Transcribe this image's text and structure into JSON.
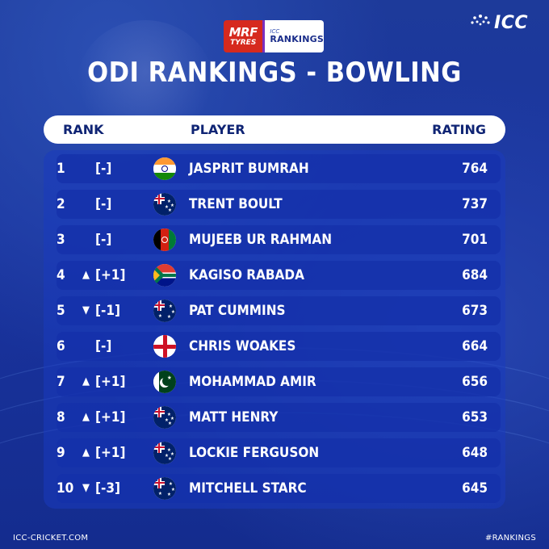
{
  "brand": {
    "mrf_line1": "MRF",
    "mrf_line2": "TYRES",
    "rankings_line1": "ICC",
    "rankings_line2": "RANKINGS",
    "icc_logo": "ICC"
  },
  "title": "ODI RANKINGS - BOWLING",
  "header": {
    "rank": "RANK",
    "player": "PLAYER",
    "rating": "RATING"
  },
  "rows": [
    {
      "rank": "1",
      "arrow": "",
      "change": "[-]",
      "player": "JASPRIT BUMRAH",
      "rating": "764",
      "flag": "india-flag-icon"
    },
    {
      "rank": "2",
      "arrow": "",
      "change": "[-]",
      "player": "TRENT BOULT",
      "rating": "737",
      "flag": "new-zealand-flag-icon"
    },
    {
      "rank": "3",
      "arrow": "",
      "change": "[-]",
      "player": "MUJEEB UR RAHMAN",
      "rating": "701",
      "flag": "afghanistan-flag-icon"
    },
    {
      "rank": "4",
      "arrow": "▲",
      "change": "[+1]",
      "player": "KAGISO RABADA",
      "rating": "684",
      "flag": "south-africa-flag-icon"
    },
    {
      "rank": "5",
      "arrow": "▼",
      "change": "[-1]",
      "player": "PAT CUMMINS",
      "rating": "673",
      "flag": "australia-flag-icon"
    },
    {
      "rank": "6",
      "arrow": "",
      "change": "[-]",
      "player": "CHRIS WOAKES",
      "rating": "664",
      "flag": "england-flag-icon"
    },
    {
      "rank": "7",
      "arrow": "▲",
      "change": "[+1]",
      "player": "MOHAMMAD AMIR",
      "rating": "656",
      "flag": "pakistan-flag-icon"
    },
    {
      "rank": "8",
      "arrow": "▲",
      "change": "[+1]",
      "player": "MATT HENRY",
      "rating": "653",
      "flag": "new-zealand-flag-icon"
    },
    {
      "rank": "9",
      "arrow": "▲",
      "change": "[+1]",
      "player": "LOCKIE FERGUSON",
      "rating": "648",
      "flag": "new-zealand-flag-icon"
    },
    {
      "rank": "10",
      "arrow": "▼",
      "change": "[-3]",
      "player": "MITCHELL STARC",
      "rating": "645",
      "flag": "australia-flag-icon"
    }
  ],
  "footer": {
    "website": "ICC-CRICKET.COM",
    "hashtag": "#RANKINGS"
  },
  "colors": {
    "background": "#1a34a0",
    "header_bg": "#ffffff",
    "header_text": "#0f2474",
    "mrf_red": "#d62a1e",
    "row_text": "#ffffff"
  }
}
